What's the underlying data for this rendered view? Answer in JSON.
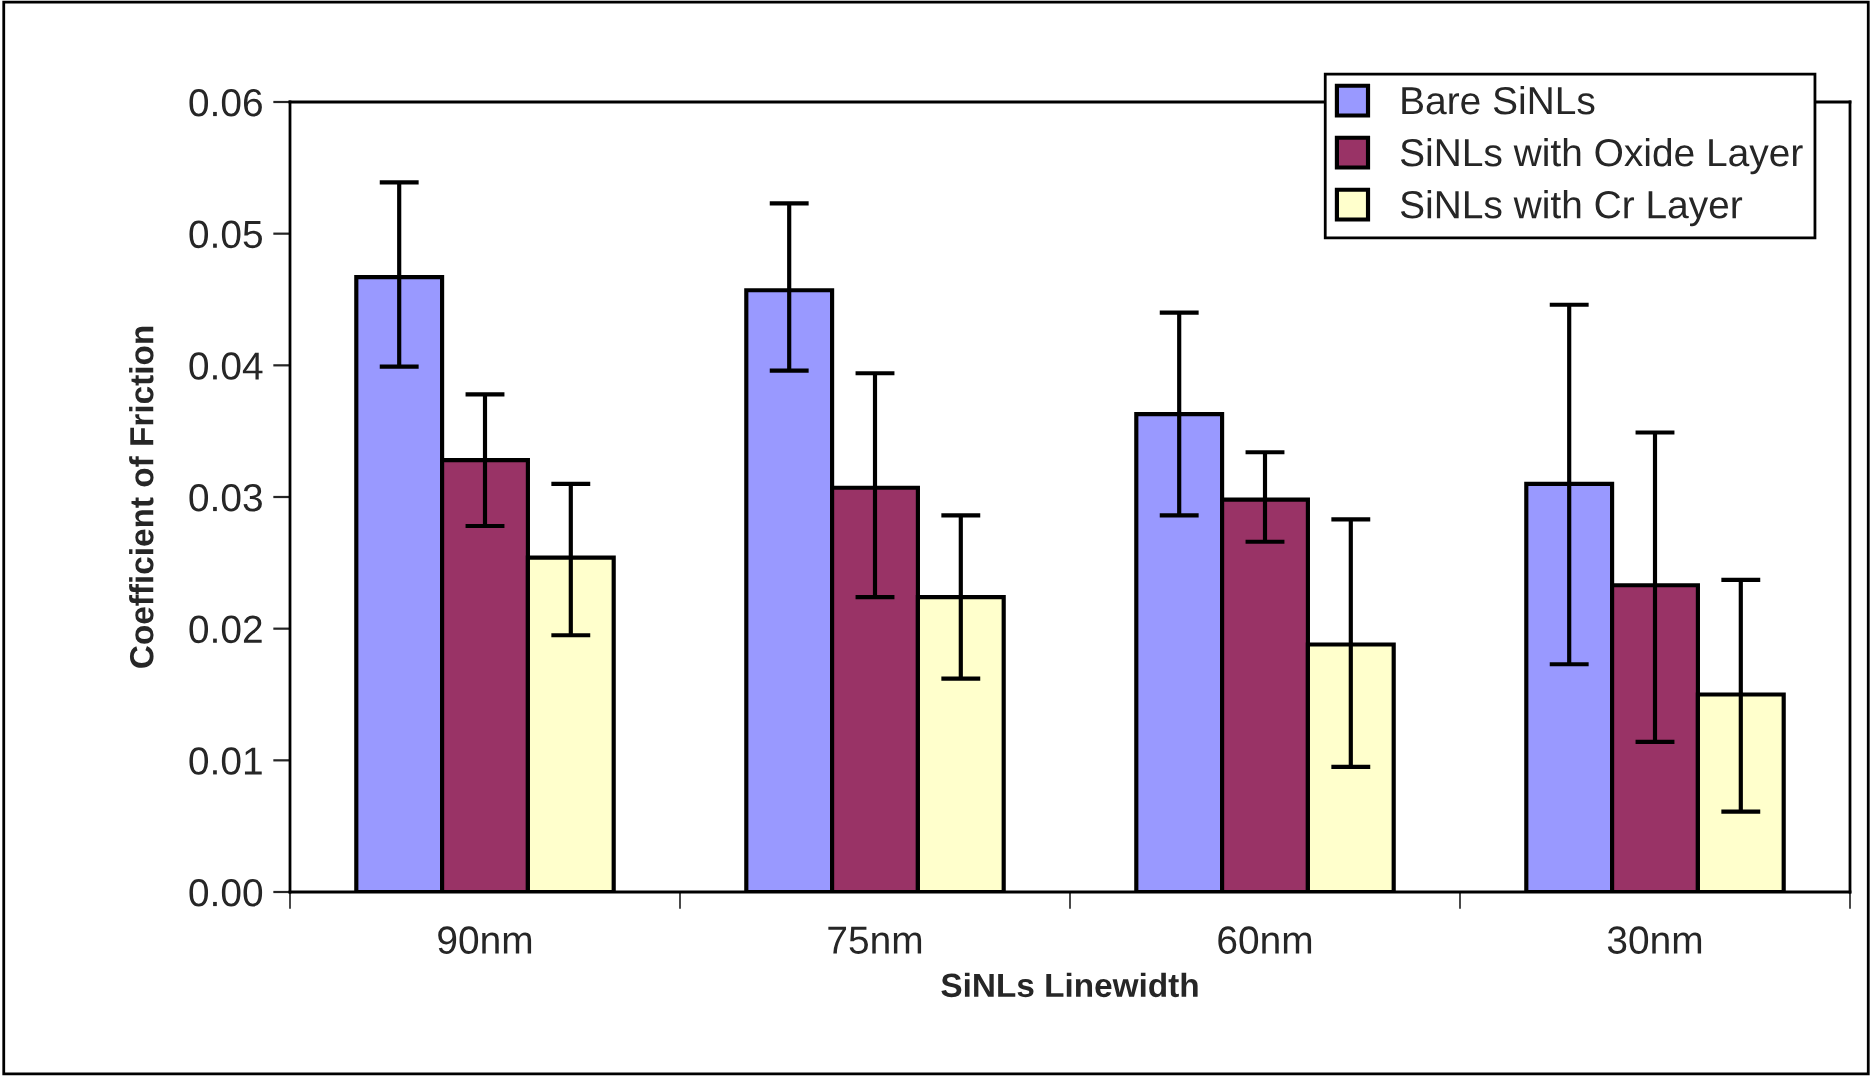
{
  "chart_data": {
    "type": "bar",
    "xlabel": "SiNLs Linewidth",
    "ylabel": "Coefficient of Friction",
    "categories": [
      "90nm",
      "75nm",
      "60nm",
      "30nm"
    ],
    "series": [
      {
        "name": "Bare SiNLs",
        "color": "#9999ff",
        "values": [
          0.0467,
          0.0457,
          0.0363,
          0.031
        ],
        "errors": [
          [
            0.0399,
            0.0539
          ],
          [
            0.0396,
            0.0523
          ],
          [
            0.0286,
            0.044
          ],
          [
            0.0173,
            0.0446
          ]
        ]
      },
      {
        "name": "SiNLs with Oxide Layer",
        "color": "#993366",
        "values": [
          0.0328,
          0.0307,
          0.0298,
          0.0233
        ],
        "errors": [
          [
            0.0278,
            0.0378
          ],
          [
            0.0224,
            0.0394
          ],
          [
            0.0266,
            0.0334
          ],
          [
            0.0114,
            0.0349
          ]
        ]
      },
      {
        "name": "SiNLs with Cr Layer",
        "color": "#ffffcc",
        "values": [
          0.0254,
          0.0224,
          0.0188,
          0.015
        ],
        "errors": [
          [
            0.0195,
            0.031
          ],
          [
            0.0162,
            0.0286
          ],
          [
            0.0095,
            0.0283
          ],
          [
            0.0061,
            0.0237
          ]
        ]
      }
    ],
    "ylim": [
      0,
      0.06
    ],
    "yticks": [
      {
        "value": 0,
        "label": "0.00"
      },
      {
        "value": 0.01,
        "label": "0.01"
      },
      {
        "value": 0.02,
        "label": "0.02"
      },
      {
        "value": 0.03,
        "label": "0.03"
      },
      {
        "value": 0.04,
        "label": "0.04"
      },
      {
        "value": 0.05,
        "label": "0.05"
      },
      {
        "value": 0.06,
        "label": "0.06"
      }
    ],
    "grid": false,
    "legend": "top right"
  }
}
